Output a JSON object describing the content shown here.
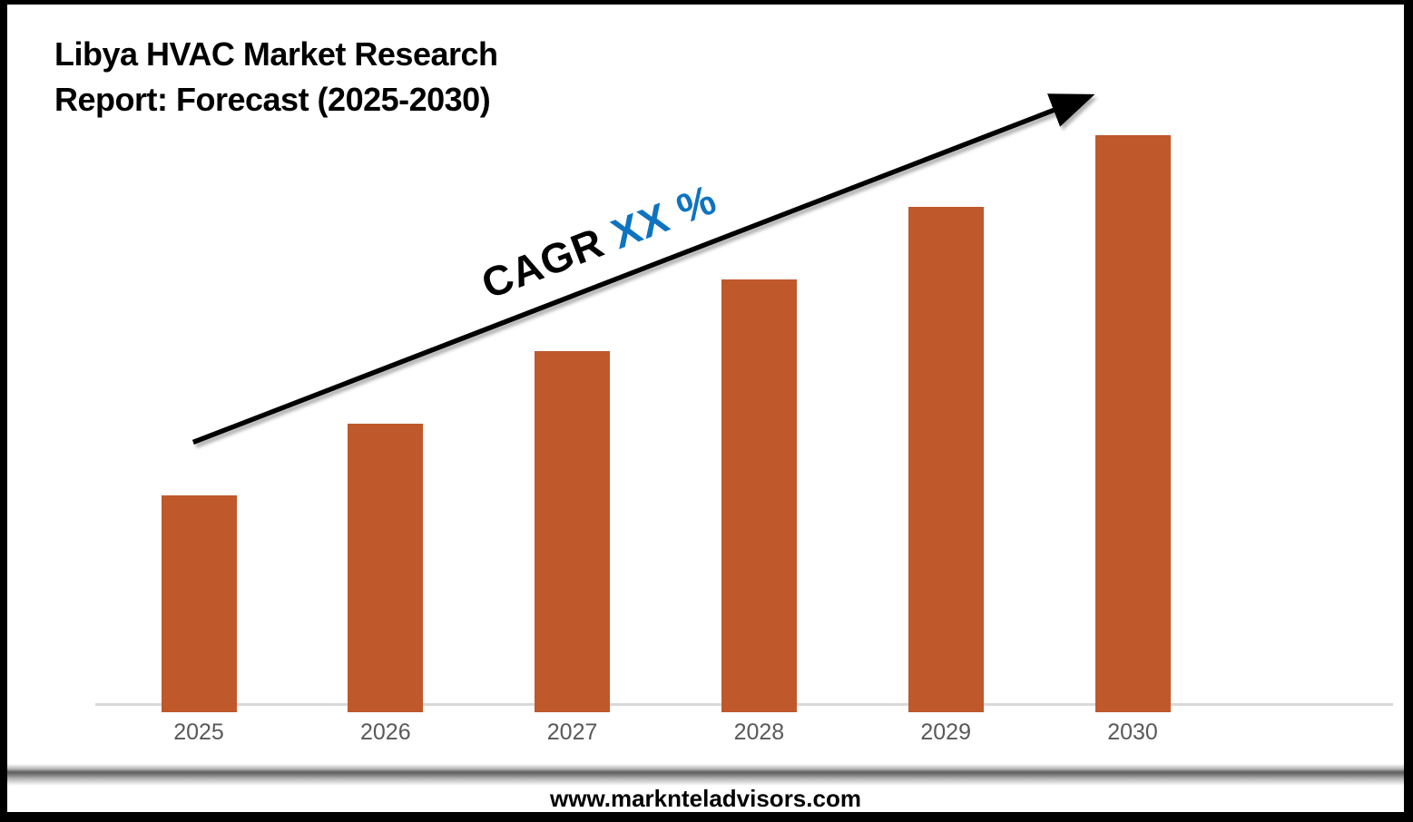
{
  "title": {
    "line1": "Libya HVAC Market Research",
    "line2": "Report: Forecast (2025-2030)"
  },
  "cagr": {
    "prefix": "CAGR ",
    "value": "XX %",
    "prefix_color": "#000000",
    "value_color": "#0e74bf"
  },
  "footer": {
    "url": "www.marknteladvisors.com"
  },
  "colors": {
    "bar": "#bf582b",
    "axis_line": "#d9d9d9",
    "x_label": "#595959",
    "arrow": "#000000",
    "frame_border": "#000000"
  },
  "chart_data": {
    "type": "bar",
    "title": "Libya HVAC Market Research Report: Forecast (2025-2030)",
    "categories": [
      "2025",
      "2026",
      "2027",
      "2028",
      "2029",
      "2030"
    ],
    "values": [
      3,
      4,
      5,
      6,
      7,
      8
    ],
    "values_unit": "relative (no y-axis values shown; heights estimated from pixels, linear growth)",
    "xlabel": "",
    "ylabel": "",
    "ylim": [
      0,
      8.8
    ],
    "grid": false,
    "legend": false,
    "bar_color": "#bf582b",
    "annotation": {
      "text": "CAGR XX %",
      "arrow_from_category": "2025",
      "arrow_to_category": "2030",
      "arrow_color": "#000000"
    }
  }
}
